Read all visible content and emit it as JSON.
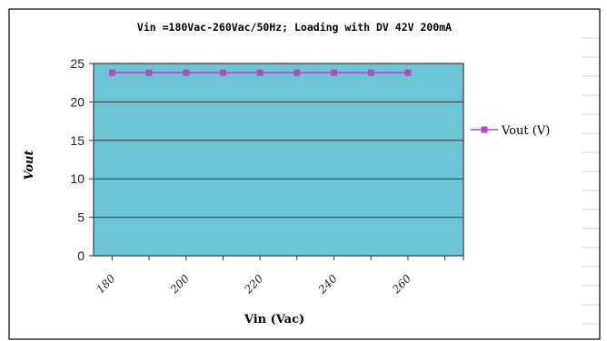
{
  "chart_data": {
    "type": "line",
    "title": "Vin =180Vac-260Vac/50Hz; Loading with DV 42V 200mA",
    "xlabel": "Vin (Vac)",
    "ylabel": "Vout",
    "ylim": [
      0,
      25
    ],
    "yticks": [
      "0",
      "5",
      "10",
      "15",
      "20",
      "25"
    ],
    "xticks": [
      "180",
      "200",
      "220",
      "240",
      "260"
    ],
    "x": [
      180,
      190,
      200,
      210,
      220,
      230,
      240,
      250,
      260
    ],
    "series": [
      {
        "name": "Vout (V)",
        "values": [
          23.8,
          23.8,
          23.8,
          23.8,
          23.8,
          23.8,
          23.8,
          23.8,
          23.8
        ]
      }
    ],
    "grid": true,
    "legend": "right",
    "colors": {
      "plot_area": "#6cc6d8",
      "series": "#b04dc0",
      "grid": "#3a3a3a",
      "frame": "#3a3a3a"
    }
  }
}
